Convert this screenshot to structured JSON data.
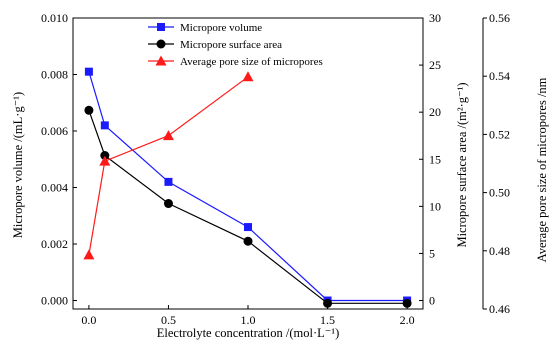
{
  "chart_data": {
    "type": "line",
    "x": [
      0.0,
      0.1,
      0.5,
      1.0,
      1.5,
      2.0
    ],
    "xlabel": "Electrolyte concentration /(mol·L⁻¹)",
    "xlim": [
      -0.1,
      2.1
    ],
    "xticks": [
      "0.0",
      "0.5",
      "1.0",
      "1.5",
      "2.0"
    ],
    "axes": {
      "left": {
        "label": "Micropore volume /(mL·g⁻¹)",
        "lim": [
          -0.0003,
          0.01
        ],
        "ticks": [
          "0.000",
          "0.002",
          "0.004",
          "0.006",
          "0.008",
          "0.010"
        ]
      },
      "right1": {
        "label": "Micropore surface area /(m²·g⁻¹)",
        "lim": [
          -0.9,
          30
        ],
        "ticks": [
          "0",
          "5",
          "10",
          "15",
          "20",
          "25",
          "30"
        ]
      },
      "right2": {
        "label": "Average pore size of micropores /nm",
        "lim": [
          0.46,
          0.56
        ],
        "ticks": [
          "0.46",
          "0.48",
          "0.50",
          "0.52",
          "0.54",
          "0.56"
        ]
      }
    },
    "series": [
      {
        "name": "Micropore volume",
        "axis": "left",
        "color": "#1a1aff",
        "marker": "square",
        "x": [
          0.0,
          0.1,
          0.5,
          1.0,
          1.5,
          2.0
        ],
        "y": [
          0.0081,
          0.0062,
          0.0042,
          0.0026,
          0.0,
          0.0
        ]
      },
      {
        "name": "Micropore surface area",
        "axis": "right1",
        "color": "#000000",
        "marker": "circle",
        "x": [
          0.0,
          0.1,
          0.5,
          1.0,
          1.5,
          2.0
        ],
        "y": [
          20.2,
          15.4,
          10.3,
          6.3,
          -0.3,
          -0.3
        ]
      },
      {
        "name": "Average pore size of micropores",
        "axis": "right2",
        "color": "#ff1a1a",
        "marker": "triangle",
        "x": [
          0.0,
          0.1,
          0.5,
          1.0
        ],
        "y": [
          0.4786,
          0.5108,
          0.5196,
          0.5398
        ]
      }
    ],
    "legend_position": "top-center"
  }
}
